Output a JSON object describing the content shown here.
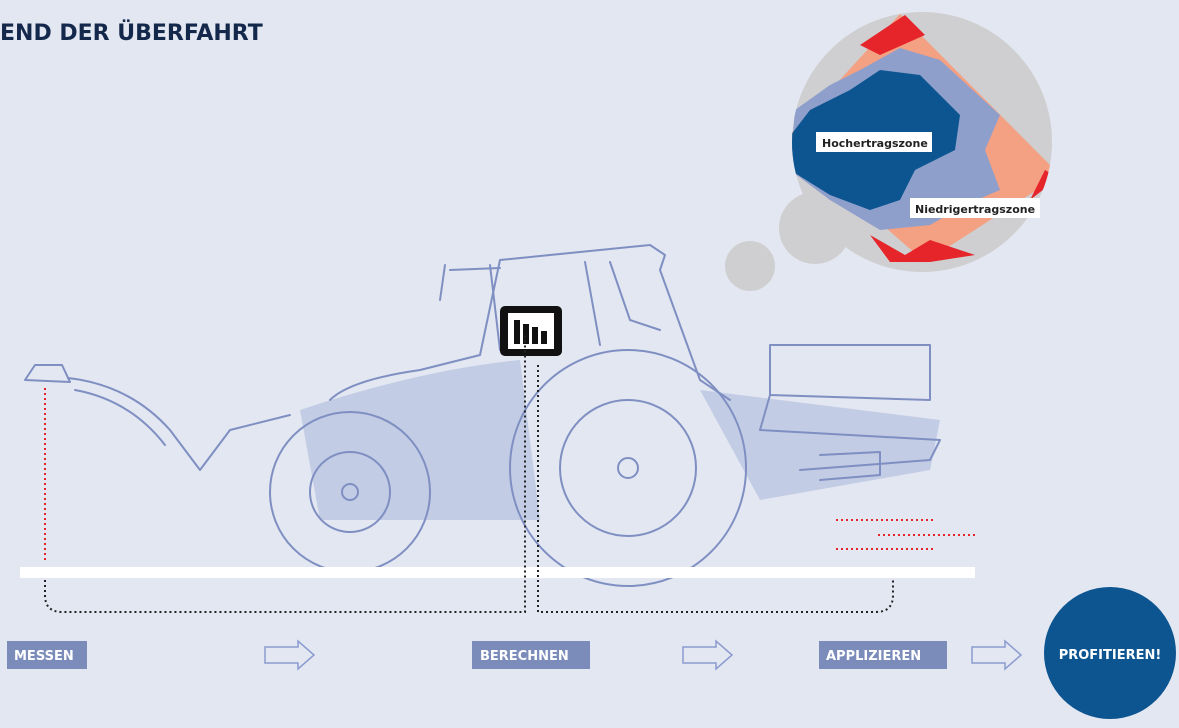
{
  "header": {
    "title": "END DER ÜBERFAHRT"
  },
  "map": {
    "zones": [
      {
        "label": "Hochertragszone"
      },
      {
        "label": "Niedrigertragszone"
      }
    ]
  },
  "steps": [
    {
      "label": "MESSEN"
    },
    {
      "label": "BERECHNEN"
    },
    {
      "label": "APPLIZIEREN"
    },
    {
      "label": "PROFITIEREN!"
    }
  ]
}
